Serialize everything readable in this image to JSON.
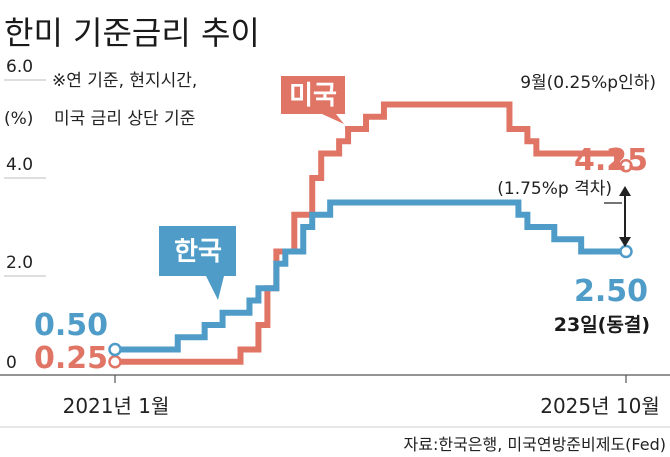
{
  "chart_data": {
    "type": "line",
    "title": "한미 기준금리 추이",
    "y_unit": "(%)",
    "notes": [
      "※연 기준, 현지시간,",
      "미국 금리 상단 기준"
    ],
    "y_ticks": [
      {
        "value": 0,
        "label": "0"
      },
      {
        "value": 2,
        "label": "2.0"
      },
      {
        "value": 4,
        "label": "4.0"
      },
      {
        "value": 6,
        "label": "6.0"
      }
    ],
    "ylim": [
      0,
      6
    ],
    "x_ticks": [
      "2021년 1월",
      "2025년 10월"
    ],
    "series": [
      {
        "name": "미국",
        "color": "#e07566",
        "start_label": "0.25",
        "end_label": "4.25",
        "points": [
          {
            "x": "2021-01",
            "y": 0.25
          },
          {
            "x": "2022-03",
            "y": 0.5
          },
          {
            "x": "2022-05",
            "y": 1.0
          },
          {
            "x": "2022-06",
            "y": 1.75
          },
          {
            "x": "2022-07",
            "y": 2.5
          },
          {
            "x": "2022-09",
            "y": 3.25
          },
          {
            "x": "2022-11",
            "y": 4.0
          },
          {
            "x": "2022-12",
            "y": 4.5
          },
          {
            "x": "2023-02",
            "y": 4.75
          },
          {
            "x": "2023-03",
            "y": 5.0
          },
          {
            "x": "2023-05",
            "y": 5.25
          },
          {
            "x": "2023-07",
            "y": 5.5
          },
          {
            "x": "2024-09",
            "y": 5.0
          },
          {
            "x": "2024-11",
            "y": 4.75
          },
          {
            "x": "2024-12",
            "y": 4.5
          },
          {
            "x": "2025-09",
            "y": 4.25
          },
          {
            "x": "2025-10",
            "y": 4.25
          }
        ]
      },
      {
        "name": "한국",
        "color": "#4f9cc9",
        "start_label": "0.50",
        "end_label": "2.50",
        "points": [
          {
            "x": "2021-01",
            "y": 0.5
          },
          {
            "x": "2021-08",
            "y": 0.75
          },
          {
            "x": "2021-11",
            "y": 1.0
          },
          {
            "x": "2022-01",
            "y": 1.25
          },
          {
            "x": "2022-04",
            "y": 1.5
          },
          {
            "x": "2022-05",
            "y": 1.75
          },
          {
            "x": "2022-07",
            "y": 2.25
          },
          {
            "x": "2022-08",
            "y": 2.5
          },
          {
            "x": "2022-10",
            "y": 3.0
          },
          {
            "x": "2022-11",
            "y": 3.25
          },
          {
            "x": "2023-01",
            "y": 3.5
          },
          {
            "x": "2024-10",
            "y": 3.25
          },
          {
            "x": "2024-11",
            "y": 3.0
          },
          {
            "x": "2025-02",
            "y": 2.75
          },
          {
            "x": "2025-05",
            "y": 2.5
          },
          {
            "x": "2025-10",
            "y": 2.5
          }
        ]
      }
    ],
    "annotations": {
      "cut_note": "9월(0.25%p인하)",
      "gap_note": "(1.75%p 격차)",
      "freeze_note": "23일(동결)"
    },
    "source": "자료:한국은행, 미국연방준비제도(Fed)"
  }
}
